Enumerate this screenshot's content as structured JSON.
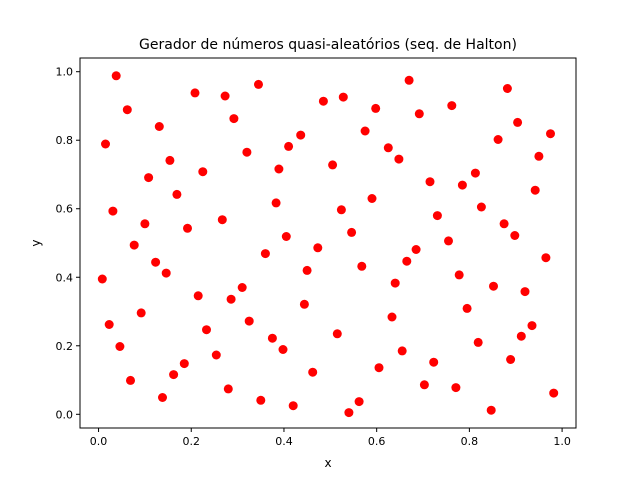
{
  "chart_data": {
    "type": "scatter",
    "title": "Gerador de números quasi-aleatórios (seq. de Halton)",
    "xlabel": "x",
    "ylabel": "y",
    "xlim": [
      -0.04,
      1.03
    ],
    "ylim": [
      -0.04,
      1.04
    ],
    "xticks": [
      0.0,
      0.2,
      0.4,
      0.6,
      0.8,
      1.0
    ],
    "yticks": [
      0.0,
      0.2,
      0.4,
      0.6,
      0.8,
      1.0
    ],
    "xtick_labels": [
      "0.0",
      "0.2",
      "0.4",
      "0.6",
      "0.8",
      "1.0"
    ],
    "ytick_labels": [
      "0.0",
      "0.2",
      "0.4",
      "0.6",
      "0.8",
      "1.0"
    ],
    "grid": false,
    "marker_color": "#ff0000",
    "points": [
      [
        0.015,
        0.789
      ],
      [
        0.038,
        0.988
      ],
      [
        0.062,
        0.889
      ],
      [
        0.031,
        0.593
      ],
      [
        0.008,
        0.395
      ],
      [
        0.023,
        0.262
      ],
      [
        0.046,
        0.198
      ],
      [
        0.069,
        0.099
      ],
      [
        0.077,
        0.494
      ],
      [
        0.092,
        0.296
      ],
      [
        0.1,
        0.556
      ],
      [
        0.108,
        0.691
      ],
      [
        0.123,
        0.444
      ],
      [
        0.131,
        0.84
      ],
      [
        0.138,
        0.049
      ],
      [
        0.146,
        0.412
      ],
      [
        0.154,
        0.741
      ],
      [
        0.162,
        0.116
      ],
      [
        0.169,
        0.642
      ],
      [
        0.185,
        0.148
      ],
      [
        0.192,
        0.543
      ],
      [
        0.208,
        0.938
      ],
      [
        0.215,
        0.346
      ],
      [
        0.225,
        0.708
      ],
      [
        0.233,
        0.247
      ],
      [
        0.254,
        0.173
      ],
      [
        0.267,
        0.568
      ],
      [
        0.273,
        0.929
      ],
      [
        0.28,
        0.074
      ],
      [
        0.286,
        0.336
      ],
      [
        0.292,
        0.863
      ],
      [
        0.31,
        0.37
      ],
      [
        0.32,
        0.765
      ],
      [
        0.325,
        0.272
      ],
      [
        0.345,
        0.963
      ],
      [
        0.35,
        0.041
      ],
      [
        0.36,
        0.469
      ],
      [
        0.375,
        0.222
      ],
      [
        0.383,
        0.617
      ],
      [
        0.389,
        0.716
      ],
      [
        0.398,
        0.189
      ],
      [
        0.405,
        0.519
      ],
      [
        0.41,
        0.782
      ],
      [
        0.42,
        0.025
      ],
      [
        0.436,
        0.815
      ],
      [
        0.444,
        0.321
      ],
      [
        0.45,
        0.42
      ],
      [
        0.462,
        0.123
      ],
      [
        0.473,
        0.486
      ],
      [
        0.485,
        0.914
      ],
      [
        0.505,
        0.728
      ],
      [
        0.515,
        0.235
      ],
      [
        0.524,
        0.597
      ],
      [
        0.528,
        0.926
      ],
      [
        0.54,
        0.005
      ],
      [
        0.546,
        0.531
      ],
      [
        0.562,
        0.037
      ],
      [
        0.568,
        0.432
      ],
      [
        0.575,
        0.827
      ],
      [
        0.59,
        0.63
      ],
      [
        0.598,
        0.893
      ],
      [
        0.605,
        0.136
      ],
      [
        0.625,
        0.778
      ],
      [
        0.633,
        0.284
      ],
      [
        0.64,
        0.383
      ],
      [
        0.648,
        0.745
      ],
      [
        0.655,
        0.185
      ],
      [
        0.665,
        0.447
      ],
      [
        0.67,
        0.975
      ],
      [
        0.685,
        0.481
      ],
      [
        0.692,
        0.877
      ],
      [
        0.703,
        0.086
      ],
      [
        0.715,
        0.679
      ],
      [
        0.723,
        0.152
      ],
      [
        0.731,
        0.58
      ],
      [
        0.755,
        0.506
      ],
      [
        0.762,
        0.901
      ],
      [
        0.771,
        0.078
      ],
      [
        0.778,
        0.407
      ],
      [
        0.785,
        0.669
      ],
      [
        0.795,
        0.309
      ],
      [
        0.813,
        0.704
      ],
      [
        0.819,
        0.21
      ],
      [
        0.826,
        0.605
      ],
      [
        0.847,
        0.012
      ],
      [
        0.852,
        0.374
      ],
      [
        0.862,
        0.802
      ],
      [
        0.875,
        0.556
      ],
      [
        0.882,
        0.951
      ],
      [
        0.889,
        0.16
      ],
      [
        0.898,
        0.522
      ],
      [
        0.904,
        0.852
      ],
      [
        0.912,
        0.228
      ],
      [
        0.92,
        0.358
      ],
      [
        0.935,
        0.259
      ],
      [
        0.942,
        0.654
      ],
      [
        0.95,
        0.753
      ],
      [
        0.965,
        0.457
      ],
      [
        0.975,
        0.819
      ],
      [
        0.982,
        0.062
      ]
    ]
  }
}
